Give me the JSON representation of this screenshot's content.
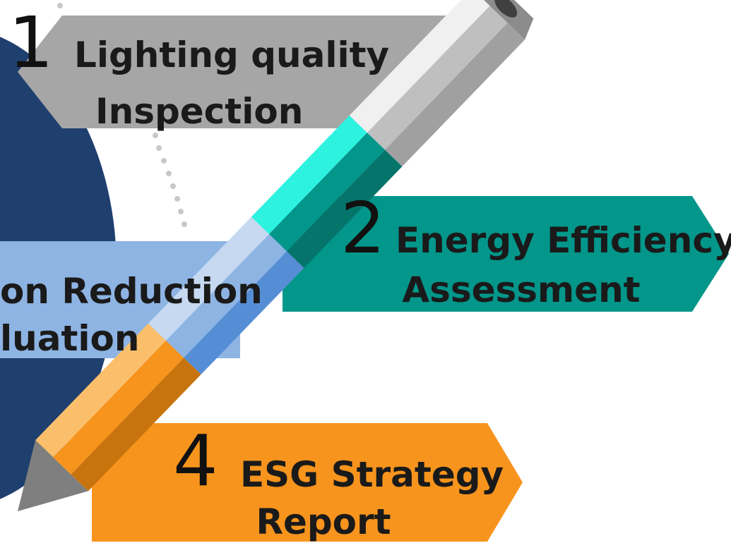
{
  "steps": [
    {
      "number": "1",
      "lines": [
        "Lighting quality",
        "Inspection"
      ]
    },
    {
      "number": "2",
      "lines": [
        "Energy Efficiency",
        "Assessment"
      ]
    },
    {
      "lines": [
        "on Reduction",
        "luation"
      ]
    },
    {
      "number": "4",
      "lines": [
        "ESG Strategy",
        "Report"
      ]
    }
  ]
}
